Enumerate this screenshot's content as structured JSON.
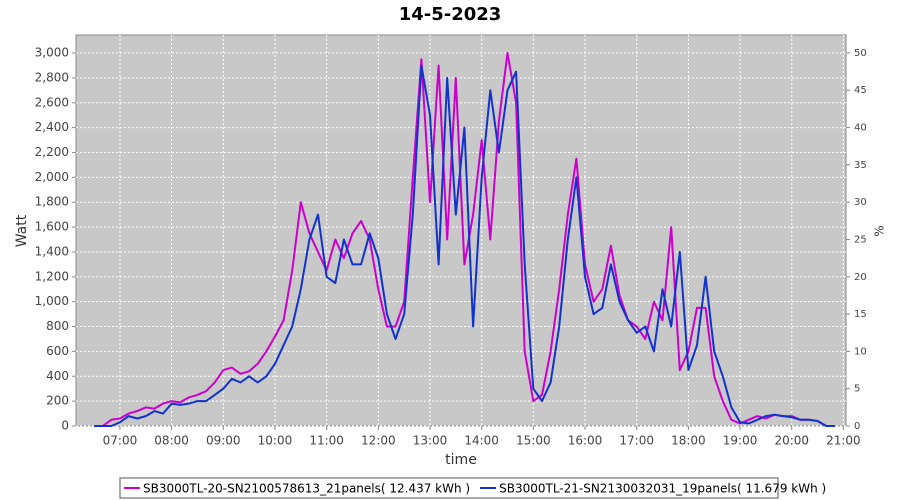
{
  "chart_data": {
    "type": "line",
    "title": "14-5-2023",
    "x_label": "time",
    "y_label": "Watt",
    "y2_label": "%",
    "x": [
      390,
      400,
      410,
      420,
      430,
      440,
      450,
      460,
      470,
      480,
      490,
      500,
      510,
      520,
      530,
      540,
      550,
      560,
      570,
      580,
      590,
      600,
      610,
      620,
      630,
      640,
      650,
      660,
      670,
      680,
      690,
      700,
      710,
      720,
      730,
      740,
      750,
      760,
      770,
      780,
      790,
      800,
      810,
      820,
      830,
      840,
      850,
      860,
      870,
      880,
      890,
      900,
      910,
      920,
      930,
      940,
      950,
      960,
      970,
      980,
      990,
      1000,
      1010,
      1020,
      1030,
      1040,
      1050,
      1060,
      1070,
      1080,
      1090,
      1100,
      1110,
      1120,
      1130,
      1140,
      1150,
      1160,
      1170,
      1180,
      1190,
      1200,
      1210,
      1220,
      1230,
      1240,
      1250
    ],
    "xlim": [
      369,
      1263
    ],
    "xticks": [
      {
        "value": 420,
        "label": "07:00"
      },
      {
        "value": 480,
        "label": "08:00"
      },
      {
        "value": 540,
        "label": "09:00"
      },
      {
        "value": 600,
        "label": "10:00"
      },
      {
        "value": 660,
        "label": "11:00"
      },
      {
        "value": 720,
        "label": "12:00"
      },
      {
        "value": 780,
        "label": "13:00"
      },
      {
        "value": 840,
        "label": "14:00"
      },
      {
        "value": 900,
        "label": "15:00"
      },
      {
        "value": 960,
        "label": "16:00"
      },
      {
        "value": 1020,
        "label": "17:00"
      },
      {
        "value": 1080,
        "label": "18:00"
      },
      {
        "value": 1140,
        "label": "19:00"
      },
      {
        "value": 1200,
        "label": "20:00"
      },
      {
        "value": 1260,
        "label": "21:00"
      }
    ],
    "ylim": [
      0,
      3145
    ],
    "yticks": [
      0,
      200,
      400,
      600,
      800,
      {
        "value": 1000,
        "label": "1,000"
      },
      {
        "value": 1200,
        "label": "1,200"
      },
      {
        "value": 1400,
        "label": "1,400"
      },
      {
        "value": 1600,
        "label": "1,600"
      },
      {
        "value": 1800,
        "label": "1,800"
      },
      {
        "value": 2000,
        "label": "2,000"
      },
      {
        "value": 2200,
        "label": "2,200"
      },
      {
        "value": 2400,
        "label": "2,400"
      },
      {
        "value": 2600,
        "label": "2,600"
      },
      {
        "value": 2800,
        "label": "2,800"
      },
      {
        "value": 3000,
        "label": "3,000"
      }
    ],
    "y2lim": [
      0,
      52.4
    ],
    "y2ticks": [
      0,
      5,
      10,
      15,
      20,
      25,
      30,
      35,
      40,
      45,
      50
    ],
    "grid": true,
    "legend": "bottom",
    "series": [
      {
        "name": "SB3000TL-20-SN2100578613_21panels( 12.437 kWh )",
        "color": "#cc00cc",
        "values": [
          0,
          0,
          50,
          60,
          100,
          120,
          150,
          140,
          180,
          200,
          190,
          230,
          250,
          280,
          350,
          450,
          470,
          420,
          440,
          500,
          600,
          720,
          850,
          1250,
          1800,
          1550,
          1400,
          1250,
          1500,
          1350,
          1550,
          1650,
          1500,
          1100,
          800,
          800,
          1000,
          2000,
          2950,
          1800,
          2900,
          1500,
          2800,
          1300,
          1700,
          2300,
          1500,
          2450,
          3000,
          2600,
          600,
          200,
          250,
          600,
          1100,
          1700,
          2150,
          1300,
          1000,
          1100,
          1450,
          1050,
          850,
          800,
          700,
          1000,
          850,
          1600,
          450,
          600,
          950,
          950,
          400,
          200,
          50,
          20,
          50,
          80,
          60,
          90,
          80,
          80,
          50,
          50,
          40,
          0,
          0
        ]
      },
      {
        "name": "SB3000TL-21-SN2130032031_19panels( 11.679 kWh )",
        "color": "#1133cc",
        "values": [
          0,
          0,
          0,
          30,
          80,
          60,
          80,
          120,
          100,
          180,
          170,
          180,
          200,
          200,
          250,
          300,
          380,
          350,
          400,
          350,
          400,
          500,
          650,
          800,
          1100,
          1500,
          1700,
          1200,
          1150,
          1500,
          1300,
          1300,
          1550,
          1350,
          900,
          700,
          900,
          1700,
          2900,
          2500,
          1300,
          2800,
          1700,
          2400,
          800,
          2000,
          2700,
          2200,
          2700,
          2850,
          1300,
          300,
          200,
          350,
          800,
          1500,
          2000,
          1200,
          900,
          950,
          1300,
          1000,
          850,
          750,
          800,
          600,
          1100,
          800,
          1400,
          450,
          650,
          1200,
          600,
          400,
          150,
          30,
          20,
          50,
          80,
          90,
          80,
          70,
          50,
          50,
          40,
          0,
          0
        ]
      }
    ]
  }
}
